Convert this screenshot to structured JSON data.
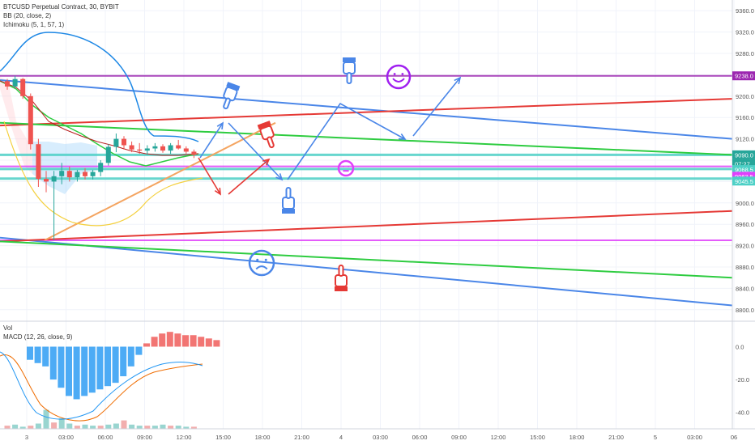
{
  "header": {
    "symbol_line": "BTCUSD Perpetual Contract, 30, BYBIT",
    "bb_label": "BB (20, close, 2)",
    "ichimoku_label": "Ichimoku (5, 1, 57, 1)",
    "vol_label": "Vol",
    "macd_label": "MACD (12, 26, close, 9)"
  },
  "chart_data": [
    {
      "type": "line",
      "panel": "price",
      "y_axis_ticks": [
        9360.0,
        9320.0,
        9280.0,
        9240.0,
        9200.0,
        9160.0,
        9120.0,
        9080.0,
        9040.0,
        9000.0,
        8960.0,
        8920.0,
        8880.0,
        8840.0,
        8800.0
      ],
      "y_axis_tick_labels": [
        "9360.0",
        "9320.0",
        "9280.0",
        "9240.0",
        "9200.0",
        "9160.0",
        "9120.0",
        "9080.0",
        "9040.0",
        "9000.0",
        "8960.0",
        "8920.0",
        "8880.0",
        "8840.0",
        "8800.0"
      ],
      "ylim": [
        8780,
        9380
      ],
      "x_axis_tick_labels": [
        "3",
        "03:00",
        "06:00",
        "09:00",
        "12:00",
        "15:00",
        "18:00",
        "21:00",
        "4",
        "03:00",
        "06:00",
        "09:00",
        "12:00",
        "15:00",
        "18:00",
        "21:00",
        "5",
        "03:00",
        "06"
      ],
      "candles": [
        {
          "o": 9228,
          "h": 9232,
          "l": 9212,
          "c": 9218
        },
        {
          "o": 9218,
          "h": 9238,
          "l": 9214,
          "c": 9232
        },
        {
          "o": 9232,
          "h": 9234,
          "l": 9195,
          "c": 9200
        },
        {
          "o": 9200,
          "h": 9205,
          "l": 9100,
          "c": 9110
        },
        {
          "o": 9110,
          "h": 9120,
          "l": 9030,
          "c": 9045
        },
        {
          "o": 9045,
          "h": 9060,
          "l": 9020,
          "c": 9040
        },
        {
          "o": 9040,
          "h": 9060,
          "l": 8930,
          "c": 9050
        },
        {
          "o": 9050,
          "h": 9075,
          "l": 9035,
          "c": 9060
        },
        {
          "o": 9060,
          "h": 9068,
          "l": 9040,
          "c": 9048
        },
        {
          "o": 9048,
          "h": 9062,
          "l": 9040,
          "c": 9058
        },
        {
          "o": 9058,
          "h": 9065,
          "l": 9044,
          "c": 9050
        },
        {
          "o": 9050,
          "h": 9062,
          "l": 9044,
          "c": 9058
        },
        {
          "o": 9058,
          "h": 9080,
          "l": 9050,
          "c": 9075
        },
        {
          "o": 9075,
          "h": 9110,
          "l": 9070,
          "c": 9105
        },
        {
          "o": 9105,
          "h": 9130,
          "l": 9095,
          "c": 9120
        },
        {
          "o": 9120,
          "h": 9125,
          "l": 9100,
          "c": 9108
        },
        {
          "o": 9108,
          "h": 9115,
          "l": 9095,
          "c": 9100
        },
        {
          "o": 9100,
          "h": 9112,
          "l": 9092,
          "c": 9098
        },
        {
          "o": 9098,
          "h": 9108,
          "l": 9090,
          "c": 9102
        },
        {
          "o": 9102,
          "h": 9112,
          "l": 9096,
          "c": 9106
        },
        {
          "o": 9106,
          "h": 9110,
          "l": 9094,
          "c": 9098
        },
        {
          "o": 9098,
          "h": 9112,
          "l": 9092,
          "c": 9108
        },
        {
          "o": 9108,
          "h": 9118,
          "l": 9100,
          "c": 9102
        },
        {
          "o": 9102,
          "h": 9106,
          "l": 9092,
          "c": 9096
        },
        {
          "o": 9096,
          "h": 9100,
          "l": 9084,
          "c": 9090
        }
      ],
      "horizontal_levels": [
        {
          "price": 9238.0,
          "color": "#9c27b0"
        },
        {
          "price": 9090.0,
          "color": "#4dd0c6"
        },
        {
          "price": 9068.5,
          "color": "#e040fb"
        },
        {
          "price": 9063.5,
          "color": "#4dd0c6"
        },
        {
          "price": 9045.5,
          "color": "#4dd0c6"
        },
        {
          "price": 8930.0,
          "color": "#e040fb"
        }
      ],
      "price_badges": [
        {
          "label": "9238.0",
          "bg": "#9c27b0"
        },
        {
          "label": "9090.0",
          "bg": "#26a69a"
        },
        {
          "label": "07:27",
          "bg": "#26a69a"
        },
        {
          "label": "9068.5",
          "bg": "#4dd0c6"
        },
        {
          "label": "9063.5",
          "bg": "#e040fb"
        },
        {
          "label": "9045.5",
          "bg": "#4dd0c6"
        }
      ],
      "colors": {
        "up": "#26a69a",
        "down": "#ef5350",
        "bb": "#1e88e5",
        "trend_blue": "#4a86e8",
        "trend_red": "#e53935",
        "trend_green": "#2ecc40",
        "trend_orange": "#f4a460"
      }
    },
    {
      "type": "bar",
      "panel": "macd",
      "y_axis_tick_labels": [
        "0.0",
        "-20.0",
        "-40.0"
      ],
      "ylim": [
        -50,
        15
      ],
      "histogram": [
        -8,
        -10,
        -12,
        -20,
        -25,
        -30,
        -32,
        -30,
        -28,
        -26,
        -24,
        -22,
        -18,
        -12,
        -5,
        2,
        6,
        8,
        9,
        8,
        7,
        7,
        6,
        5,
        4
      ],
      "volume": [
        3,
        4,
        2,
        3,
        5,
        18,
        6,
        10,
        5,
        3,
        4,
        3,
        3,
        4,
        5,
        8,
        4,
        3,
        3,
        3,
        4,
        3,
        3,
        2,
        2
      ]
    }
  ]
}
